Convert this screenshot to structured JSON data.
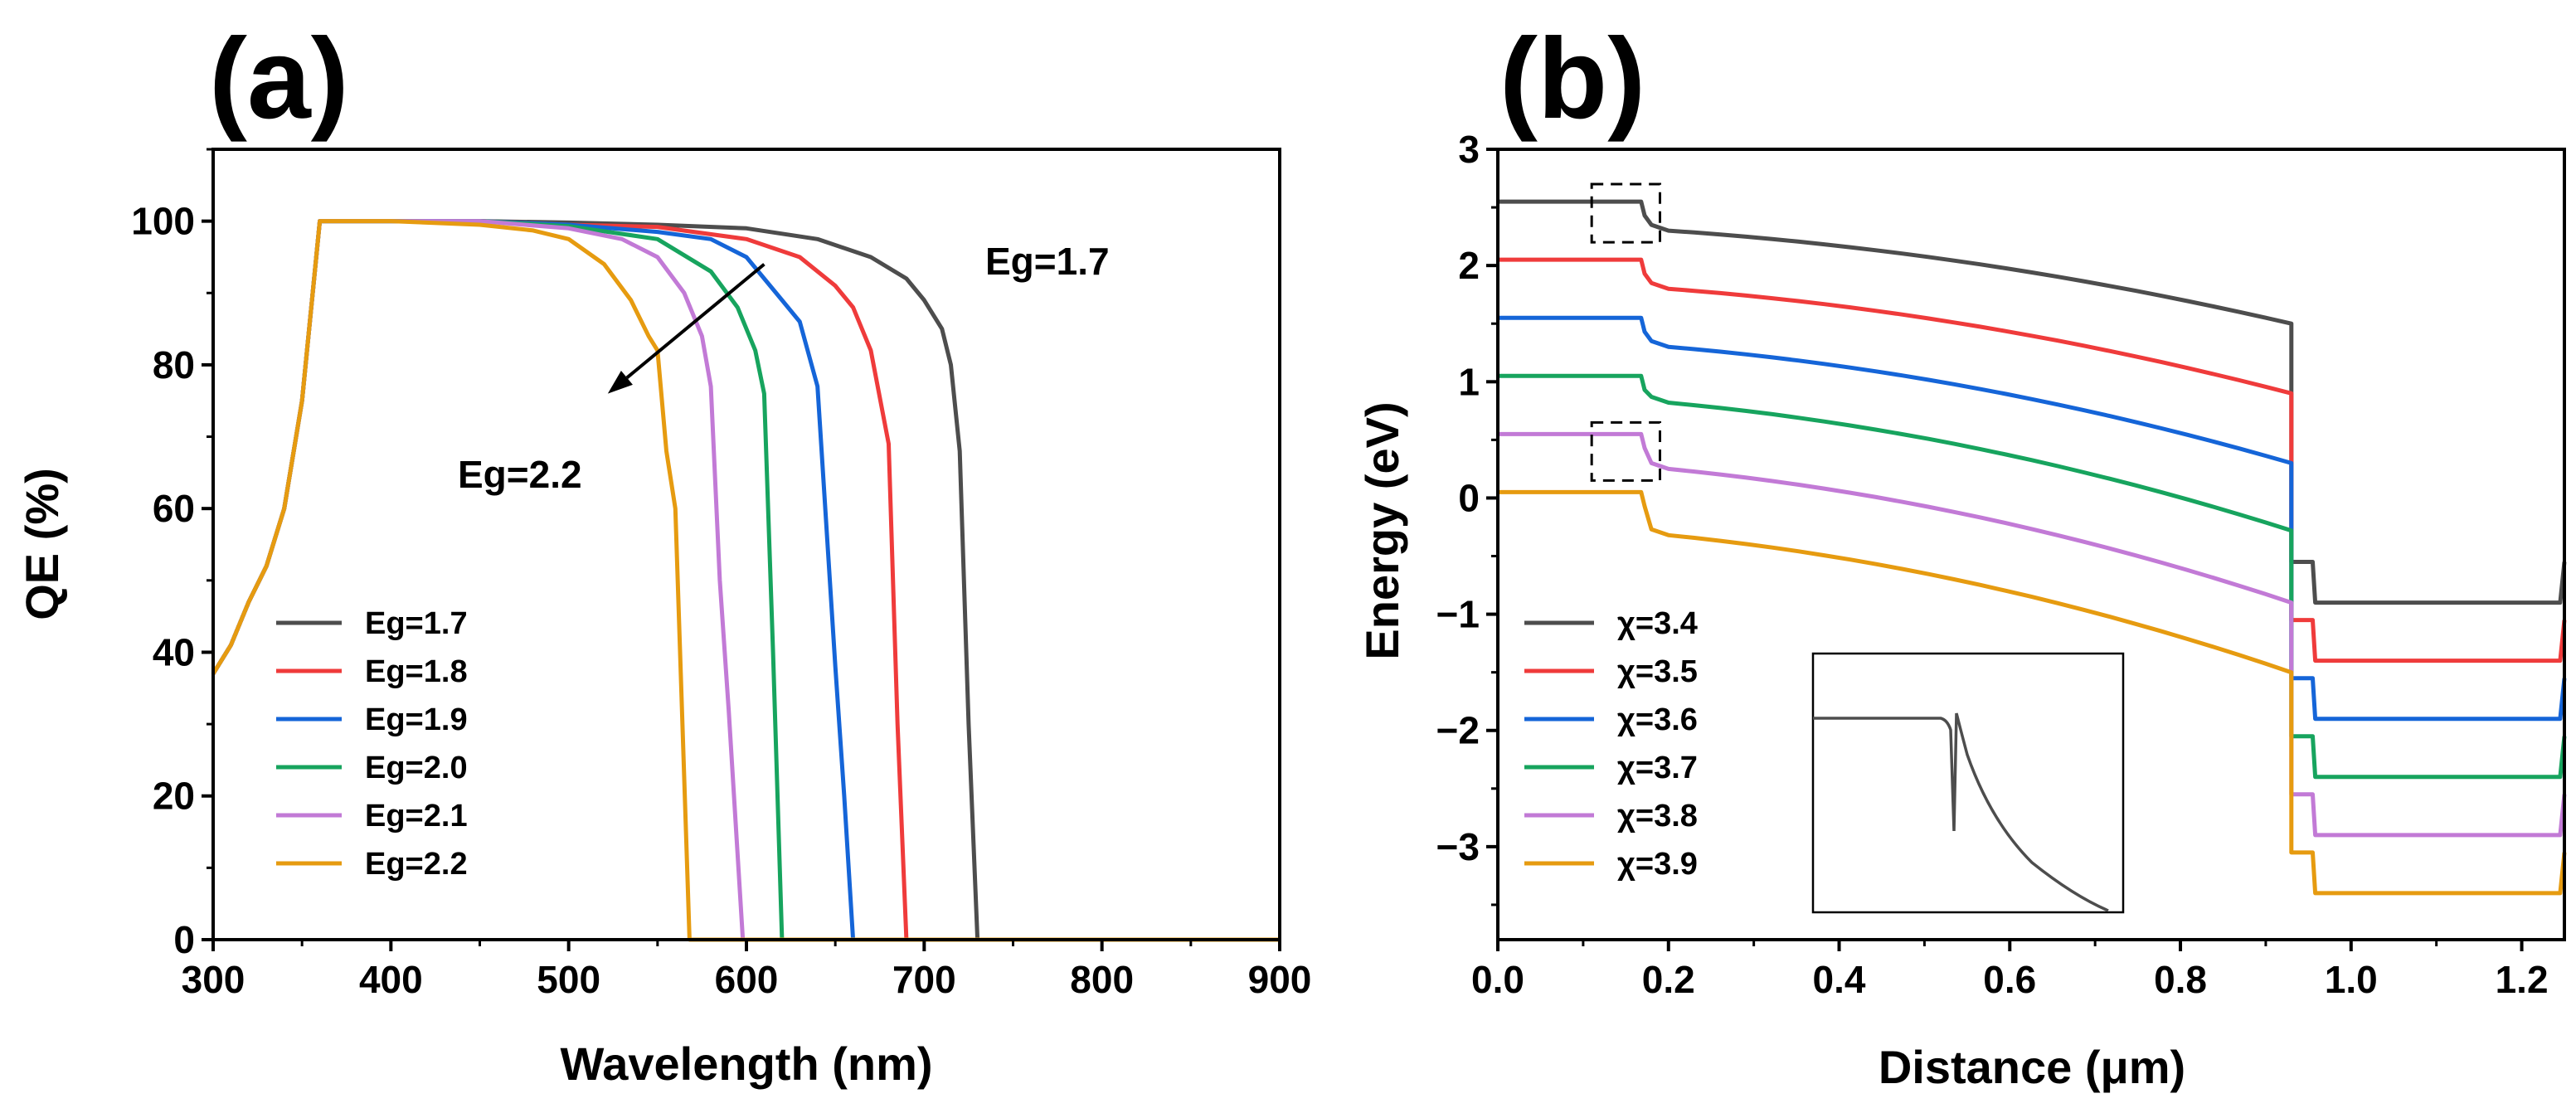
{
  "chart_data": [
    {
      "panel": "(a)",
      "type": "line",
      "xlabel": "Wavelength (nm)",
      "ylabel": "QE (%)",
      "xlim": [
        300,
        900
      ],
      "ylim": [
        0,
        110
      ],
      "xticks": [
        300,
        400,
        500,
        600,
        700,
        800,
        900
      ],
      "yticks": [
        0,
        20,
        40,
        60,
        80,
        100
      ],
      "legend_position": "bottom-left",
      "annotations": {
        "start": "Eg=1.7",
        "end": "Eg=2.2",
        "arrow_from": [
          610,
          94
        ],
        "arrow_to": [
          522,
          76
        ]
      },
      "series": [
        {
          "name": "Eg=1.7",
          "color": "#4d4d4d",
          "x": [
            300,
            310,
            320,
            330,
            340,
            350,
            360,
            400,
            450,
            500,
            550,
            600,
            640,
            670,
            690,
            700,
            710,
            715,
            720,
            725,
            730,
            732,
            900
          ],
          "y": [
            37,
            41,
            47,
            52,
            60,
            75,
            100,
            100,
            100,
            99.8,
            99.5,
            99,
            97.5,
            95,
            92,
            89,
            85,
            80,
            68,
            30,
            0,
            0,
            0
          ]
        },
        {
          "name": "Eg=1.8",
          "color": "#ef3b3b",
          "x": [
            300,
            310,
            320,
            330,
            340,
            350,
            360,
            400,
            450,
            500,
            550,
            600,
            630,
            650,
            660,
            670,
            680,
            685,
            690,
            692,
            900
          ],
          "y": [
            37,
            41,
            47,
            52,
            60,
            75,
            100,
            100,
            100,
            99.5,
            99.2,
            97.5,
            95,
            91,
            88,
            82,
            69,
            30,
            0,
            0,
            0
          ]
        },
        {
          "name": "Eg=1.9",
          "color": "#1565d8",
          "x": [
            300,
            310,
            320,
            330,
            340,
            350,
            360,
            400,
            450,
            500,
            550,
            580,
            600,
            620,
            630,
            640,
            650,
            655,
            660,
            662,
            900
          ],
          "y": [
            37,
            41,
            47,
            52,
            60,
            75,
            100,
            100,
            100,
            99.5,
            98.5,
            97.5,
            95,
            89,
            86,
            77,
            38,
            20,
            0,
            0,
            0
          ]
        },
        {
          "name": "Eg=2.0",
          "color": "#17a45e",
          "x": [
            300,
            310,
            320,
            330,
            340,
            350,
            360,
            400,
            450,
            500,
            550,
            580,
            595,
            605,
            610,
            615,
            620,
            622,
            900
          ],
          "y": [
            37,
            41,
            47,
            52,
            60,
            75,
            100,
            100,
            100,
            99.3,
            97.5,
            93,
            88,
            82,
            76,
            40,
            0,
            0,
            0
          ]
        },
        {
          "name": "Eg=2.1",
          "color": "#c27ad6",
          "x": [
            300,
            310,
            320,
            330,
            340,
            350,
            360,
            400,
            450,
            500,
            530,
            550,
            565,
            575,
            580,
            585,
            590,
            598,
            600,
            900
          ],
          "y": [
            37,
            41,
            47,
            52,
            60,
            75,
            100,
            100,
            100,
            99,
            97.5,
            95,
            90,
            84,
            77,
            50,
            32,
            0,
            0,
            0
          ]
        },
        {
          "name": "Eg=2.2",
          "color": "#e69b10",
          "x": [
            300,
            310,
            320,
            330,
            340,
            350,
            360,
            400,
            450,
            480,
            500,
            520,
            535,
            545,
            550,
            555,
            560,
            568,
            570,
            900
          ],
          "y": [
            37,
            41,
            47,
            52,
            60,
            75,
            100,
            100,
            99.5,
            98.7,
            97.5,
            94,
            89,
            84,
            82,
            68,
            60,
            0,
            0,
            0
          ]
        }
      ]
    },
    {
      "panel": "(b)",
      "type": "line",
      "xlabel": "Distance (μm)",
      "ylabel": "Energy (eV)",
      "xlim": [
        0,
        1.25
      ],
      "ylim": [
        -3.8,
        3
      ],
      "xticks": [
        "0.0",
        "0.2",
        "0.4",
        "0.6",
        "0.8",
        "1.0",
        "1.2"
      ],
      "yticks": [
        "−3",
        "−2",
        "−1",
        "0",
        "1",
        "2",
        "3"
      ],
      "legend_position": "bottom-left",
      "inset": "zoom of the band spike at x≈0.17 μm",
      "series": [
        {
          "name": "χ=3.4",
          "color": "#4d4d4d",
          "top": 2.55,
          "after": 2.3,
          "end": 1.5,
          "step": -0.55,
          "bottom": -0.9
        },
        {
          "name": "χ=3.5",
          "color": "#ef3b3b",
          "top": 2.05,
          "after": 1.8,
          "end": 0.9,
          "step": -1.05,
          "bottom": -1.4
        },
        {
          "name": "χ=3.6",
          "color": "#1565d8",
          "top": 1.55,
          "after": 1.3,
          "end": 0.3,
          "step": -1.55,
          "bottom": -1.9
        },
        {
          "name": "χ=3.7",
          "color": "#17a45e",
          "top": 1.05,
          "after": 0.82,
          "end": -0.28,
          "step": -2.05,
          "bottom": -2.4
        },
        {
          "name": "χ=3.8",
          "color": "#c27ad6",
          "top": 0.55,
          "after": 0.25,
          "end": -0.9,
          "step": -2.55,
          "bottom": -2.9
        },
        {
          "name": "χ=3.9",
          "color": "#e69b10",
          "top": 0.05,
          "after": -0.32,
          "end": -1.5,
          "step": -3.05,
          "bottom": -3.4
        }
      ]
    }
  ]
}
